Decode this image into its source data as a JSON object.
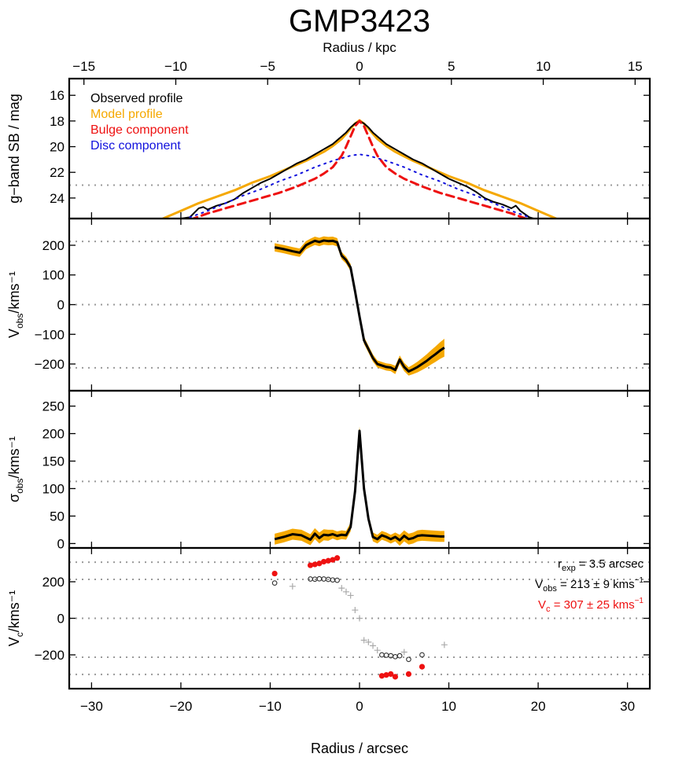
{
  "title": "GMP3423",
  "colors": {
    "observed": "#000000",
    "model": "#f5a800",
    "bulge": "#ee1111",
    "disc": "#1111dd",
    "reference": "#9a9a9a",
    "marker_grey": "#aaaaaa"
  },
  "chart_data": [
    {
      "id": "surface_brightness",
      "type": "line",
      "xlabel_top": "Radius / kpc",
      "xlim_top": [
        -15.8,
        15.8
      ],
      "xticks_top": [
        -15,
        -10,
        -5,
        0,
        5,
        10,
        15
      ],
      "xlim": [
        -32.5,
        32.5
      ],
      "ylabel": "g−band SB / mag",
      "ylim": [
        25.6,
        14.7
      ],
      "yticks": [
        16,
        18,
        20,
        22,
        24
      ],
      "reference_lines": [
        23.0
      ],
      "legend": [
        "Observed profile",
        "Model profile",
        "Bulge component",
        "Disc component"
      ],
      "legend_position": "top-left",
      "series": [
        {
          "name": "Observed profile",
          "style": "solid",
          "x": [
            -21,
            -19,
            -18,
            -17.5,
            -17,
            -16,
            -15,
            -14,
            -13,
            -12,
            -11,
            -10,
            -9,
            -8,
            -7,
            -6,
            -5,
            -4,
            -3,
            -2,
            -1.5,
            -1,
            -0.5,
            0,
            0.5,
            1,
            1.5,
            2,
            3,
            4,
            5,
            6,
            7,
            8,
            9,
            10,
            11,
            12,
            13,
            14,
            15,
            16,
            17,
            17.5,
            18,
            19,
            20,
            21
          ],
          "y": [
            25.7,
            25.5,
            24.8,
            24.7,
            24.9,
            24.6,
            24.4,
            24.1,
            23.6,
            23.2,
            22.8,
            22.5,
            22.1,
            21.7,
            21.3,
            21.0,
            20.6,
            20.2,
            19.8,
            19.2,
            18.9,
            18.5,
            18.2,
            18.0,
            18.2,
            18.5,
            18.9,
            19.2,
            19.8,
            20.2,
            20.6,
            21.0,
            21.3,
            21.7,
            22.1,
            22.5,
            22.8,
            23.1,
            23.5,
            24.0,
            24.3,
            24.5,
            24.8,
            24.6,
            25.0,
            25.5,
            25.7,
            25.8
          ]
        },
        {
          "name": "Model profile",
          "style": "solid",
          "x": [
            -22,
            -20,
            -18,
            -16,
            -14,
            -12,
            -10,
            -8,
            -6,
            -4,
            -3,
            -2,
            -1.5,
            -1,
            -0.5,
            0,
            0.5,
            1,
            1.5,
            2,
            3,
            4,
            6,
            8,
            10,
            12,
            14,
            16,
            18,
            20,
            22
          ],
          "y": [
            25.6,
            25.0,
            24.4,
            23.9,
            23.4,
            22.8,
            22.3,
            21.7,
            21.1,
            20.4,
            19.95,
            19.4,
            19.0,
            18.6,
            18.2,
            17.95,
            18.2,
            18.6,
            19.0,
            19.4,
            19.95,
            20.4,
            21.1,
            21.7,
            22.3,
            22.8,
            23.4,
            23.9,
            24.4,
            25.0,
            25.6
          ]
        },
        {
          "name": "Bulge component",
          "style": "dashed",
          "x": [
            -19,
            -17,
            -15,
            -13,
            -11,
            -9,
            -7,
            -5,
            -4,
            -3,
            -2,
            -1.5,
            -1,
            -0.5,
            0,
            0.5,
            1,
            1.5,
            2,
            3,
            4,
            5,
            7,
            9,
            11,
            13,
            15,
            17,
            19
          ],
          "y": [
            25.7,
            25.2,
            24.8,
            24.4,
            24.0,
            23.6,
            23.1,
            22.5,
            22.1,
            21.6,
            20.7,
            20.0,
            19.2,
            18.4,
            18.0,
            18.4,
            19.2,
            20.0,
            20.7,
            21.6,
            22.1,
            22.5,
            23.1,
            23.6,
            24.0,
            24.4,
            24.8,
            25.2,
            25.7
          ]
        },
        {
          "name": "Disc component",
          "style": "dotted",
          "x": [
            -19,
            -17,
            -15,
            -13,
            -11,
            -9,
            -7,
            -5,
            -3,
            -1,
            0,
            1,
            3,
            5,
            7,
            9,
            11,
            13,
            15,
            17,
            19
          ],
          "y": [
            25.5,
            25.0,
            24.4,
            23.8,
            23.3,
            22.7,
            22.2,
            21.6,
            21.1,
            20.7,
            20.6,
            20.7,
            21.1,
            21.6,
            22.2,
            22.7,
            23.3,
            23.8,
            24.4,
            25.0,
            25.5
          ]
        }
      ]
    },
    {
      "id": "velocity",
      "type": "line",
      "ylabel": "V_obs/kms⁻¹",
      "ylim": [
        -290,
        290
      ],
      "yticks": [
        -200,
        -100,
        0,
        100,
        200
      ],
      "xlim": [
        -32.5,
        32.5
      ],
      "reference_lines": [
        213,
        0,
        -213
      ],
      "series": [
        {
          "name": "V_obs",
          "x": [
            -9.5,
            -8.5,
            -7.5,
            -6.7,
            -6,
            -5.5,
            -5,
            -4.5,
            -4,
            -3.5,
            -3,
            -2.5,
            -2,
            -1.5,
            -1,
            -0.5,
            0,
            0.5,
            1,
            1.5,
            2,
            2.5,
            3,
            3.5,
            4,
            4.5,
            5,
            5.5,
            6,
            6.5,
            7,
            7.5,
            8,
            8.5,
            9,
            9.5
          ],
          "y": [
            193,
            187,
            180,
            175,
            200,
            208,
            215,
            211,
            216,
            214,
            215,
            210,
            165,
            150,
            125,
            45,
            -40,
            -120,
            -150,
            -180,
            -200,
            -205,
            -210,
            -212,
            -220,
            -185,
            -210,
            -225,
            -218,
            -210,
            -200,
            -190,
            -178,
            -167,
            -155,
            -145
          ],
          "err": [
            14,
            14,
            14,
            14,
            14,
            14,
            14,
            14,
            14,
            14,
            14,
            14,
            12,
            12,
            12,
            12,
            12,
            12,
            12,
            12,
            12,
            12,
            12,
            12,
            14,
            14,
            14,
            14,
            16,
            18,
            20,
            22,
            24,
            26,
            28,
            30
          ]
        }
      ]
    },
    {
      "id": "dispersion",
      "type": "line",
      "ylabel": "σ_obs/kms⁻¹",
      "ylim": [
        -8,
        278
      ],
      "yticks": [
        0,
        50,
        100,
        150,
        200,
        250
      ],
      "xlim": [
        -32.5,
        32.5
      ],
      "reference_lines": [
        113
      ],
      "series": [
        {
          "name": "σ_obs",
          "x": [
            -9.5,
            -8.5,
            -7.5,
            -6.5,
            -5.5,
            -5,
            -4.5,
            -4,
            -3.5,
            -3,
            -2.5,
            -2,
            -1.5,
            -1,
            -0.5,
            0,
            0.5,
            1,
            1.5,
            2,
            2.5,
            3,
            3.5,
            4,
            4.5,
            5,
            5.5,
            6,
            6.5,
            7,
            8,
            9,
            9.5
          ],
          "y": [
            8,
            12,
            17,
            15,
            7,
            18,
            10,
            16,
            15,
            17,
            14,
            16,
            15,
            30,
            95,
            205,
            100,
            45,
            12,
            8,
            15,
            12,
            8,
            12,
            6,
            14,
            8,
            10,
            14,
            15,
            14,
            13,
            13
          ],
          "err": [
            10,
            10,
            10,
            10,
            10,
            10,
            10,
            10,
            10,
            8,
            8,
            8,
            8,
            8,
            8,
            8,
            8,
            8,
            8,
            8,
            8,
            8,
            8,
            8,
            10,
            10,
            10,
            10,
            10,
            10,
            10,
            10,
            10
          ]
        }
      ]
    },
    {
      "id": "circular_velocity",
      "type": "scatter",
      "ylabel": "V_c/kms⁻¹",
      "ylim": [
        -385,
        385
      ],
      "yticks": [
        -200,
        0,
        200
      ],
      "xlim": [
        -32.5,
        32.5
      ],
      "xticks": [
        -30,
        -20,
        -10,
        0,
        10,
        20,
        30
      ],
      "xlabel": "Radius / arcsec",
      "reference_lines": [
        307,
        213,
        0,
        -213,
        -307
      ],
      "annotations": [
        {
          "label": "r",
          "sub": "exp",
          "rest": " = 3.5 arcsec",
          "color": "#000000"
        },
        {
          "label": "V",
          "sub": "obs",
          "rest": " = 213 ± 9 kms",
          "sup": "−1",
          "color": "#000000"
        },
        {
          "label": "V",
          "sub": "c",
          "rest": " = 307 ± 25 kms",
          "sup": "−1",
          "color": "#ee1111"
        }
      ],
      "series": [
        {
          "name": "V_c",
          "marker": "filled-circle",
          "x": [
            -9.5,
            -5.5,
            -5,
            -4.5,
            -4,
            -3.5,
            -3,
            -2.5,
            2.5,
            3,
            3.5,
            4,
            5.5,
            7
          ],
          "y": [
            245,
            290,
            295,
            300,
            310,
            315,
            320,
            330,
            -315,
            -310,
            -305,
            -320,
            -305,
            -265
          ]
        },
        {
          "name": "V_obs",
          "marker": "open-circle",
          "x": [
            -9.5,
            -5.5,
            -5,
            -4.5,
            -4,
            -3.5,
            -3,
            -2.5,
            2.5,
            3,
            3.5,
            4,
            4.5,
            5.5,
            7
          ],
          "y": [
            193,
            215,
            214,
            216,
            215,
            213,
            210,
            208,
            -200,
            -202,
            -205,
            -210,
            -205,
            -225,
            -200
          ]
        },
        {
          "name": "V_obs_inner",
          "marker": "plus",
          "x": [
            -7.5,
            -2,
            -1.5,
            -1,
            -0.5,
            0,
            0.5,
            1,
            1.5,
            2,
            5,
            9.5
          ],
          "y": [
            175,
            165,
            145,
            125,
            45,
            0,
            -120,
            -130,
            -150,
            -175,
            -185,
            -145
          ]
        }
      ]
    }
  ]
}
